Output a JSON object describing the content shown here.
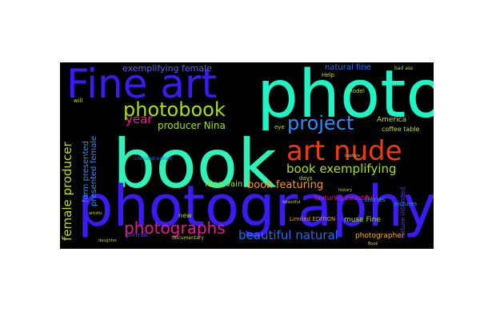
{
  "word_cloud": {
    "background": "#000000",
    "words": [
      {
        "text": "book",
        "color": "#2ef2b8"
      },
      {
        "text": "photo",
        "color": "#1df5c4"
      },
      {
        "text": "photography",
        "color": "#3a1bf5"
      },
      {
        "text": "Fine art",
        "color": "#3a1bf5"
      },
      {
        "text": "art nude",
        "color": "#ef3a12"
      },
      {
        "text": "photobook",
        "color": "#a7e014"
      },
      {
        "text": "project",
        "color": "#2f8cf5"
      },
      {
        "text": "photographs",
        "color": "#e41b8f"
      },
      {
        "text": "book exemplifying",
        "color": "#a7e014"
      },
      {
        "text": "beautiful natural",
        "color": "#1d6ef5"
      },
      {
        "text": "female producer",
        "color": "#c0d820"
      },
      {
        "text": "exemplifying female",
        "color": "#6a5af5"
      },
      {
        "text": "producer Nina",
        "color": "#a7e014"
      },
      {
        "text": "book featuring",
        "color": "#f59a1d"
      },
      {
        "text": "year",
        "color": "#e41b8f"
      },
      {
        "text": "natural fine",
        "color": "#1d6ef5"
      },
      {
        "text": "presented female",
        "color": "#2f8cf5"
      },
      {
        "text": "form presented",
        "color": "#2f8cf5"
      },
      {
        "text": "Nina Vain",
        "color": "#a7e014"
      },
      {
        "text": "America",
        "color": "#c0d820"
      },
      {
        "text": "coffee table",
        "color": "#c0d820"
      },
      {
        "text": "muse Fine",
        "color": "#a7e014"
      },
      {
        "text": "photographer",
        "color": "#f5b31d"
      },
      {
        "text": "featuring beautiful",
        "color": "#e41b8f"
      },
      {
        "text": "Limited EDITION",
        "color": "#f59a1d"
      },
      {
        "text": "new",
        "color": "#a7e014"
      },
      {
        "text": "stories",
        "color": "#2f8cf5"
      },
      {
        "text": "pictures",
        "color": "#2f8cf5"
      },
      {
        "text": "Help",
        "color": "#c0d820"
      },
      {
        "text": "model",
        "color": "#c0d820"
      },
      {
        "text": "days",
        "color": "#c0d820"
      },
      {
        "text": "eye",
        "color": "#c0d820"
      },
      {
        "text": "will",
        "color": "#c0d820"
      },
      {
        "text": "intended nature",
        "color": "#1d6ef5"
      },
      {
        "text": "nature intended",
        "color": "#5a3af5"
      },
      {
        "text": "bad ass",
        "color": "#c0d820"
      },
      {
        "text": "portrait",
        "color": "#5a3af5"
      },
      {
        "text": "documentary",
        "color": "#c0d820"
      },
      {
        "text": "beautiful",
        "color": "#c0d820"
      },
      {
        "text": "artistic",
        "color": "#c0d820"
      },
      {
        "text": "daughter",
        "color": "#c0d820"
      },
      {
        "text": "capture",
        "color": "#c0d820"
      },
      {
        "text": "history",
        "color": "#c0d820"
      },
      {
        "text": "Book",
        "color": "#c0d820"
      }
    ]
  }
}
